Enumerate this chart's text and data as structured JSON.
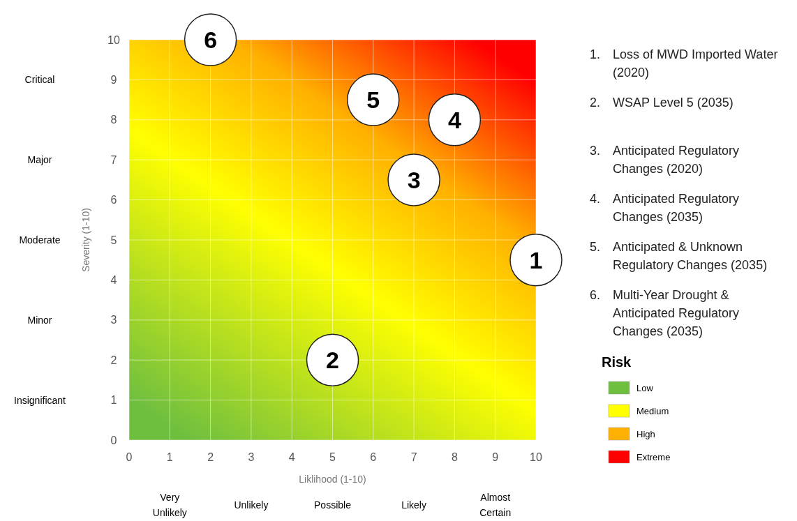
{
  "chart_data": {
    "type": "scatter",
    "xlabel": "Liklihood (1-10)",
    "ylabel": "Severity (1-10)",
    "xlim": [
      0,
      10
    ],
    "ylim": [
      0,
      10
    ],
    "xticks": [
      0,
      1,
      2,
      3,
      4,
      5,
      6,
      7,
      8,
      9,
      10
    ],
    "yticks": [
      0,
      1,
      2,
      3,
      4,
      5,
      6,
      7,
      8,
      9,
      10
    ],
    "grid": true,
    "legend": "right",
    "legend_title": "Risk",
    "marker": "circle",
    "series": [
      {
        "color": "#ffffff",
        "x": [
          10,
          5,
          7,
          8,
          6,
          2
        ],
        "values": [
          4.5,
          2,
          6.5,
          8,
          8.5,
          10
        ]
      },
      {
        "name": "Low",
        "color": "#6fbf3f",
        "values": [
          null,
          null,
          null,
          null,
          null,
          null
        ]
      },
      {
        "name": "Medium",
        "color": "#ffff00",
        "values": [
          null,
          null,
          null,
          null,
          null,
          null
        ]
      },
      {
        "name": "High",
        "color": "#ffb000",
        "values": [
          null,
          null,
          null,
          null,
          null,
          null
        ]
      },
      {
        "name": "Extreme",
        "color": "#ff0000",
        "values": [
          null,
          null,
          null,
          null,
          null,
          null
        ]
      }
    ],
    "annotations": [
      {
        "text": "1",
        "x": 10,
        "y": 4.5
      },
      {
        "text": "2",
        "x": 5,
        "y": 2
      },
      {
        "text": "3",
        "x": 7,
        "y": 6.5
      },
      {
        "text": "4",
        "x": 8,
        "y": 8
      },
      {
        "text": "5",
        "x": 6,
        "y": 8.5
      },
      {
        "text": "6",
        "x": 2,
        "y": 10
      },
      "Very Unlikely",
      "Unlikely",
      "Possible",
      "Likely",
      "Almost Certain",
      "Insignificant",
      "Minor",
      "Moderate",
      "Major",
      "Critical",
      "1. Loss of MWD Imported Water (2020)",
      "2. WSAP Level 5 (2035)",
      "3. Anticipated Regulatory Changes (2020)",
      "4. Anticipated Regulatory Changes (2035)",
      "5. Anticipated & Unknown Regulatory Changes (2035)",
      "6. Multi-Year Drought & Anticipated Regulatory Changes (2035)"
    ]
  }
}
